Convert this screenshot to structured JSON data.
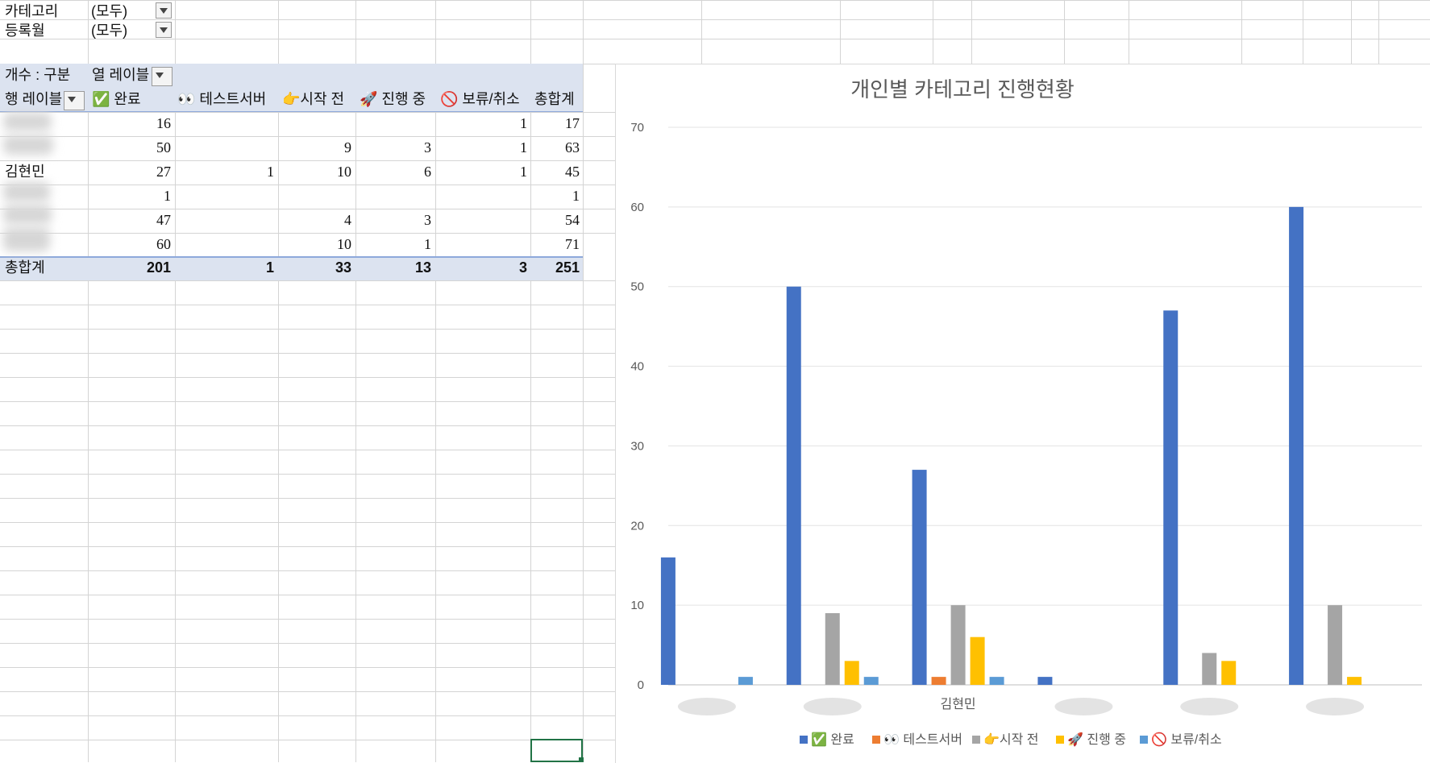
{
  "filters": [
    {
      "label": "카테고리",
      "value": "(모두)"
    },
    {
      "label": "등록월",
      "value": "(모두)"
    }
  ],
  "pivot": {
    "header_value": "개수 : 구분",
    "header_columns": "열 레이블",
    "row_label": "행 레이블",
    "columns": [
      "✅ 완료",
      "👀 테스트서버",
      "👉시작 전",
      "🚀 진행 중",
      "🚫 보류/취소",
      "총합계"
    ],
    "rows": [
      {
        "name": "",
        "values": [
          "16",
          "",
          "",
          "",
          "1",
          "17"
        ]
      },
      {
        "name": "",
        "values": [
          "50",
          "",
          "9",
          "3",
          "1",
          "63"
        ]
      },
      {
        "name": "김현민",
        "values": [
          "27",
          "1",
          "10",
          "6",
          "1",
          "45"
        ]
      },
      {
        "name": "",
        "values": [
          "1",
          "",
          "",
          "",
          "",
          "1"
        ]
      },
      {
        "name": "",
        "values": [
          "47",
          "",
          "4",
          "3",
          "",
          "54"
        ]
      },
      {
        "name": "",
        "values": [
          "60",
          "",
          "10",
          "1",
          "",
          "71"
        ]
      }
    ],
    "total": {
      "name": "총합계",
      "values": [
        "201",
        "1",
        "33",
        "13",
        "3",
        "251"
      ]
    }
  },
  "chart_data": {
    "type": "bar",
    "title": "개인별 카테고리 진행현황",
    "categories": [
      "",
      "",
      "김현민",
      "",
      "",
      ""
    ],
    "ylim": [
      0,
      70
    ],
    "yticks": [
      0,
      10,
      20,
      30,
      40,
      50,
      60,
      70
    ],
    "grid": true,
    "legend": "bottom",
    "series": [
      {
        "name": "✅ 완료",
        "color": "#4472c4",
        "values": [
          16,
          50,
          27,
          1,
          47,
          60
        ]
      },
      {
        "name": "👀 테스트서버",
        "color": "#ed7d31",
        "values": [
          0,
          0,
          1,
          0,
          0,
          0
        ]
      },
      {
        "name": "👉시작 전",
        "color": "#a5a5a5",
        "values": [
          0,
          9,
          10,
          0,
          4,
          10
        ]
      },
      {
        "name": "🚀 진행 중",
        "color": "#ffc000",
        "values": [
          0,
          3,
          6,
          0,
          3,
          1
        ]
      },
      {
        "name": "🚫 보류/취소",
        "color": "#5b9bd5",
        "values": [
          1,
          1,
          1,
          0,
          0,
          0
        ]
      }
    ]
  }
}
